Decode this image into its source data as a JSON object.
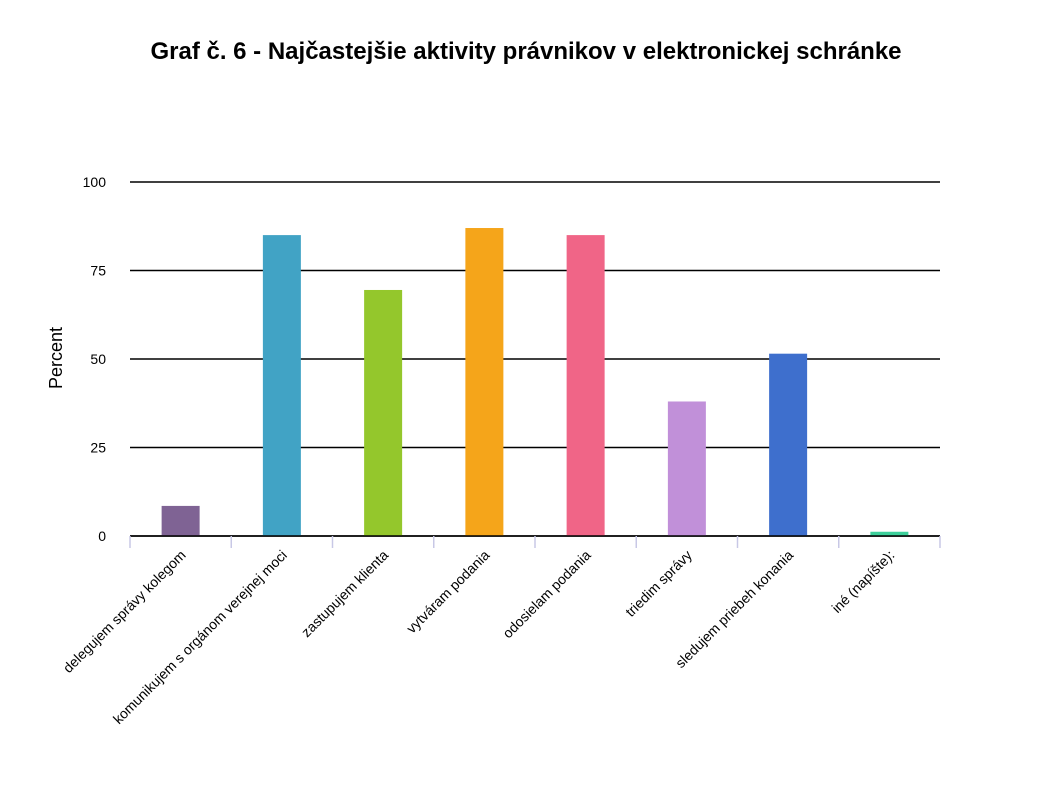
{
  "chart_data": {
    "type": "bar",
    "title": "Graf č. 6 - Najčastejšie aktivity právnikov v elektronickej schránke",
    "ylabel": "Percent",
    "xlabel": "",
    "ylim": [
      0,
      100
    ],
    "yticks": [
      0,
      25,
      50,
      75,
      100
    ],
    "grid": true,
    "categories": [
      "delegujem správy kolegom",
      "komunikujem s orgánom verejnej moci",
      "zastupujem klienta",
      "vytváram podania",
      "odosielam podania",
      "triedim správy",
      "sledujem priebeh konania",
      "iné (napíšte):"
    ],
    "values": [
      8.5,
      85,
      69.5,
      87,
      85,
      38,
      51.5,
      1.2
    ],
    "colors": [
      "#7f6394",
      "#41a3c5",
      "#94c72c",
      "#f5a51a",
      "#f06587",
      "#c190d9",
      "#3e6fcd",
      "#3ccf9a"
    ]
  }
}
